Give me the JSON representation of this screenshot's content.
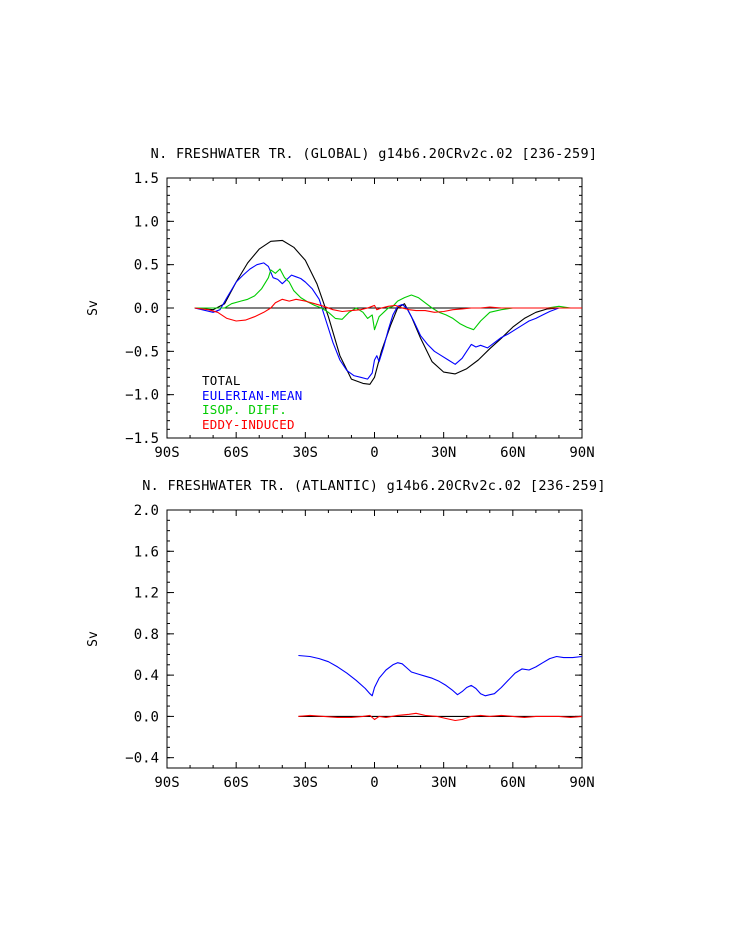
{
  "chart_data": [
    {
      "type": "line",
      "title": "N. FRESHWATER TR. (GLOBAL) g14b6.20CRv2c.02 [236-259]",
      "xlabel": "",
      "ylabel": "Sv",
      "xlim": [
        -90,
        90
      ],
      "ylim": [
        -1.5,
        1.5
      ],
      "x_ticks": [
        "90S",
        "60S",
        "30S",
        "0",
        "30N",
        "60N",
        "90N"
      ],
      "y_ticks": [
        "1.5",
        "1.0",
        "0.5",
        "0.0",
        "−0.5",
        "−1.0",
        "−1.5"
      ],
      "legend_position": "bottom-left",
      "series": [
        {
          "name": "TOTAL",
          "color": "#000000",
          "x": [
            -78,
            -70,
            -65,
            -60,
            -55,
            -50,
            -45,
            -40,
            -35,
            -30,
            -25,
            -20,
            -15,
            -10,
            -5,
            -2,
            0,
            3,
            7,
            10,
            13,
            16,
            20,
            25,
            30,
            35,
            40,
            45,
            50,
            55,
            60,
            65,
            70,
            75,
            80,
            85,
            90
          ],
          "values": [
            0.0,
            -0.02,
            0.05,
            0.3,
            0.52,
            0.68,
            0.77,
            0.78,
            0.7,
            0.55,
            0.28,
            -0.1,
            -0.55,
            -0.82,
            -0.87,
            -0.88,
            -0.8,
            -0.5,
            -0.2,
            0.0,
            0.05,
            -0.1,
            -0.35,
            -0.62,
            -0.74,
            -0.76,
            -0.7,
            -0.6,
            -0.47,
            -0.35,
            -0.22,
            -0.12,
            -0.05,
            -0.01,
            0.0,
            0.0,
            0.0
          ]
        },
        {
          "name": "EULERIAN-MEAN",
          "color": "#0000ff",
          "x": [
            -78,
            -70,
            -67,
            -64,
            -60,
            -57,
            -54,
            -51,
            -48,
            -46,
            -44,
            -42,
            -40,
            -38,
            -36,
            -34,
            -32,
            -30,
            -27,
            -24,
            -21,
            -18,
            -15,
            -12,
            -9,
            -6,
            -3,
            -1,
            0,
            1,
            2,
            4,
            6,
            8,
            10,
            12,
            14,
            17,
            20,
            23,
            26,
            29,
            32,
            35,
            38,
            40,
            42,
            44,
            46,
            49,
            52,
            55,
            58,
            61,
            64,
            67,
            70,
            73,
            76,
            80,
            85,
            90
          ],
          "values": [
            0.0,
            -0.05,
            -0.02,
            0.12,
            0.3,
            0.38,
            0.45,
            0.5,
            0.52,
            0.48,
            0.35,
            0.33,
            0.28,
            0.33,
            0.38,
            0.36,
            0.34,
            0.3,
            0.22,
            0.1,
            -0.15,
            -0.4,
            -0.6,
            -0.72,
            -0.78,
            -0.8,
            -0.82,
            -0.75,
            -0.6,
            -0.55,
            -0.62,
            -0.45,
            -0.25,
            -0.08,
            0.02,
            0.04,
            0.0,
            -0.15,
            -0.32,
            -0.42,
            -0.5,
            -0.55,
            -0.6,
            -0.65,
            -0.58,
            -0.5,
            -0.42,
            -0.45,
            -0.43,
            -0.46,
            -0.4,
            -0.34,
            -0.3,
            -0.25,
            -0.2,
            -0.15,
            -0.12,
            -0.08,
            -0.04,
            0.0,
            0.0,
            0.0
          ]
        },
        {
          "name": "ISOP. DIFF.",
          "color": "#00cc00",
          "x": [
            -78,
            -70,
            -65,
            -62,
            -58,
            -55,
            -52,
            -49,
            -46,
            -45,
            -43,
            -41,
            -39,
            -37,
            -35,
            -32,
            -29,
            -26,
            -23,
            -20,
            -17,
            -14,
            -11,
            -8,
            -5,
            -3,
            -1,
            0,
            2,
            4,
            6,
            8,
            10,
            13,
            16,
            19,
            22,
            25,
            28,
            31,
            34,
            37,
            40,
            43,
            46,
            50,
            55,
            60,
            65,
            70,
            75,
            80,
            85,
            90
          ],
          "values": [
            0.0,
            0.0,
            0.0,
            0.05,
            0.08,
            0.1,
            0.14,
            0.22,
            0.35,
            0.44,
            0.4,
            0.45,
            0.35,
            0.3,
            0.2,
            0.12,
            0.07,
            0.03,
            0.0,
            -0.05,
            -0.12,
            -0.13,
            -0.05,
            0.0,
            -0.05,
            -0.12,
            -0.08,
            -0.25,
            -0.1,
            -0.05,
            0.0,
            0.02,
            0.08,
            0.12,
            0.15,
            0.12,
            0.06,
            0.0,
            -0.05,
            -0.08,
            -0.12,
            -0.18,
            -0.22,
            -0.25,
            -0.15,
            -0.05,
            -0.02,
            0.0,
            0.0,
            0.0,
            0.0,
            0.02,
            0.0,
            0.0
          ]
        },
        {
          "name": "EDDY-INDUCED",
          "color": "#ff0000",
          "x": [
            -78,
            -72,
            -68,
            -64,
            -60,
            -56,
            -52,
            -48,
            -45,
            -43,
            -40,
            -37,
            -34,
            -30,
            -26,
            -22,
            -18,
            -14,
            -10,
            -6,
            -3,
            -1,
            0,
            1,
            3,
            6,
            9,
            12,
            15,
            18,
            22,
            26,
            30,
            34,
            38,
            42,
            46,
            50,
            55,
            60,
            65,
            70,
            75,
            80,
            85,
            90
          ],
          "values": [
            0.0,
            -0.02,
            -0.05,
            -0.12,
            -0.15,
            -0.14,
            -0.1,
            -0.05,
            0.0,
            0.06,
            0.1,
            0.08,
            0.1,
            0.08,
            0.05,
            0.02,
            -0.02,
            -0.04,
            -0.03,
            -0.02,
            0.0,
            0.02,
            0.03,
            -0.02,
            0.0,
            0.02,
            0.03,
            0.0,
            -0.02,
            -0.03,
            -0.03,
            -0.05,
            -0.04,
            -0.02,
            -0.01,
            0.0,
            0.0,
            0.01,
            0.0,
            0.0,
            0.0,
            0.0,
            0.0,
            0.0,
            0.0,
            0.0
          ]
        }
      ]
    },
    {
      "type": "line",
      "title": "N. FRESHWATER TR. (ATLANTIC) g14b6.20CRv2c.02 [236-259]",
      "xlabel": "",
      "ylabel": "Sv",
      "xlim": [
        -90,
        90
      ],
      "ylim": [
        -0.5,
        2.0
      ],
      "x_ticks": [
        "90S",
        "60S",
        "30S",
        "0",
        "30N",
        "60N",
        "90N"
      ],
      "y_ticks": [
        "2.0",
        "1.6",
        "1.2",
        "0.8",
        "0.4",
        "0.0",
        "−0.4"
      ],
      "series": [
        {
          "color": "#000000",
          "x": [
            -33,
            90
          ],
          "values": [
            0.0,
            0.0
          ]
        },
        {
          "color": "#0000ff",
          "x": [
            -33,
            -28,
            -24,
            -20,
            -16,
            -12,
            -8,
            -4,
            -2,
            -1,
            0,
            2,
            5,
            8,
            10,
            12,
            14,
            16,
            19,
            22,
            25,
            28,
            31,
            34,
            36,
            38,
            40,
            42,
            44,
            46,
            48,
            50,
            52,
            55,
            58,
            61,
            64,
            67,
            70,
            73,
            76,
            79,
            82,
            86,
            90
          ],
          "values": [
            0.59,
            0.58,
            0.56,
            0.53,
            0.48,
            0.42,
            0.35,
            0.27,
            0.22,
            0.2,
            0.28,
            0.37,
            0.45,
            0.5,
            0.52,
            0.51,
            0.47,
            0.43,
            0.41,
            0.39,
            0.37,
            0.34,
            0.3,
            0.25,
            0.21,
            0.24,
            0.28,
            0.3,
            0.27,
            0.22,
            0.2,
            0.21,
            0.22,
            0.28,
            0.35,
            0.42,
            0.46,
            0.45,
            0.48,
            0.52,
            0.56,
            0.58,
            0.57,
            0.57,
            0.58
          ]
        },
        {
          "color": "#ff0000",
          "x": [
            -33,
            -28,
            -22,
            -16,
            -10,
            -5,
            -2,
            0,
            2,
            5,
            10,
            15,
            18,
            22,
            27,
            31,
            35,
            38,
            42,
            46,
            50,
            55,
            60,
            65,
            70,
            75,
            80,
            85,
            90
          ],
          "values": [
            0.0,
            0.01,
            0.0,
            -0.01,
            -0.01,
            0.0,
            0.01,
            -0.03,
            0.0,
            -0.01,
            0.01,
            0.02,
            0.03,
            0.01,
            0.0,
            -0.02,
            -0.04,
            -0.03,
            0.0,
            0.01,
            0.0,
            0.01,
            0.0,
            -0.01,
            0.0,
            0.0,
            0.0,
            -0.01,
            0.0
          ]
        }
      ]
    }
  ]
}
